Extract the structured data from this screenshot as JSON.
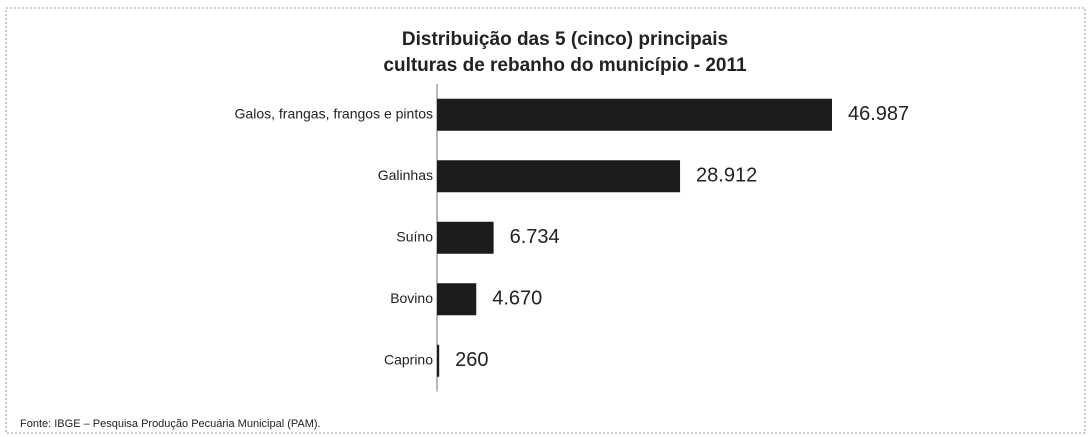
{
  "chart_data": {
    "type": "hbar",
    "title": [
      "Distribuição das 5 (cinco) principais",
      "culturas de rebanho do município - 2011"
    ],
    "categories": [
      "Galos, frangas, frangos e pintos",
      "Galinhas",
      "Suíno",
      "Bovino",
      "Caprino"
    ],
    "values": [
      46987,
      28912,
      6734,
      4670,
      260
    ],
    "value_labels": [
      "46.987",
      "28.912",
      "6.734",
      "4.670",
      "260"
    ],
    "color": "#1c1c1c",
    "source": "Fonte: IBGE – Pesquisa Produção Pecuária Municipal (PAM)."
  }
}
